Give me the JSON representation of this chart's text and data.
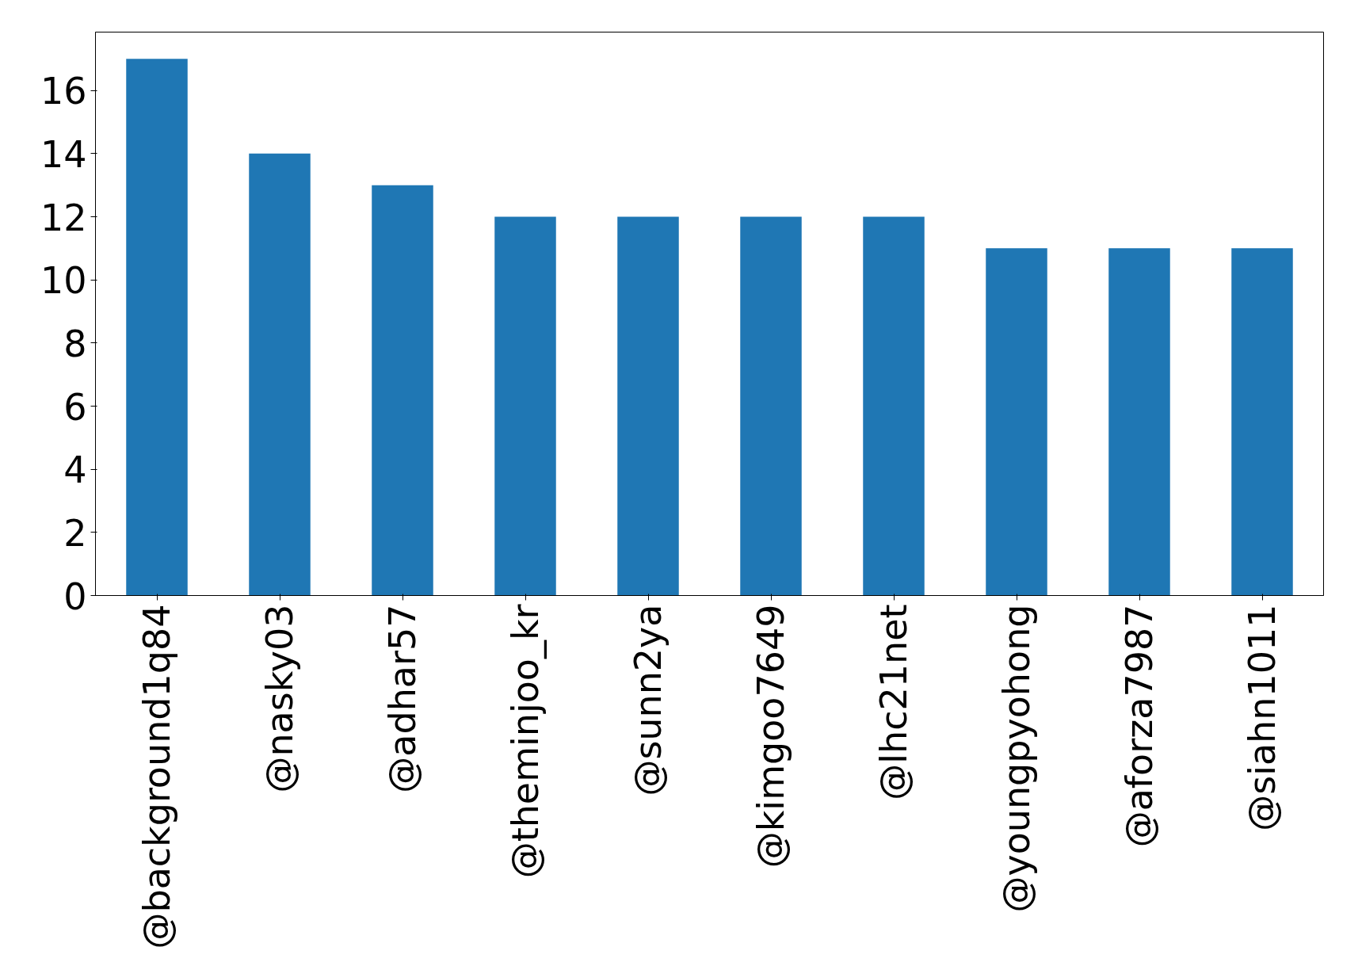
{
  "chart_data": {
    "type": "bar",
    "categories": [
      "@background1q84",
      "@nasky03",
      "@adhar57",
      "@theminjoo_kr",
      "@sunn2ya",
      "@kimgoo7649",
      "@lhc21net",
      "@youngpyohong",
      "@aforza7987",
      "@siahn1011"
    ],
    "values": [
      17,
      14,
      13,
      12,
      12,
      12,
      12,
      11,
      11,
      11
    ],
    "color": "#1f77b4",
    "ylim": [
      0,
      17.85
    ],
    "yticks": [
      0,
      2,
      4,
      6,
      8,
      10,
      12,
      14,
      16
    ],
    "grid": false
  }
}
